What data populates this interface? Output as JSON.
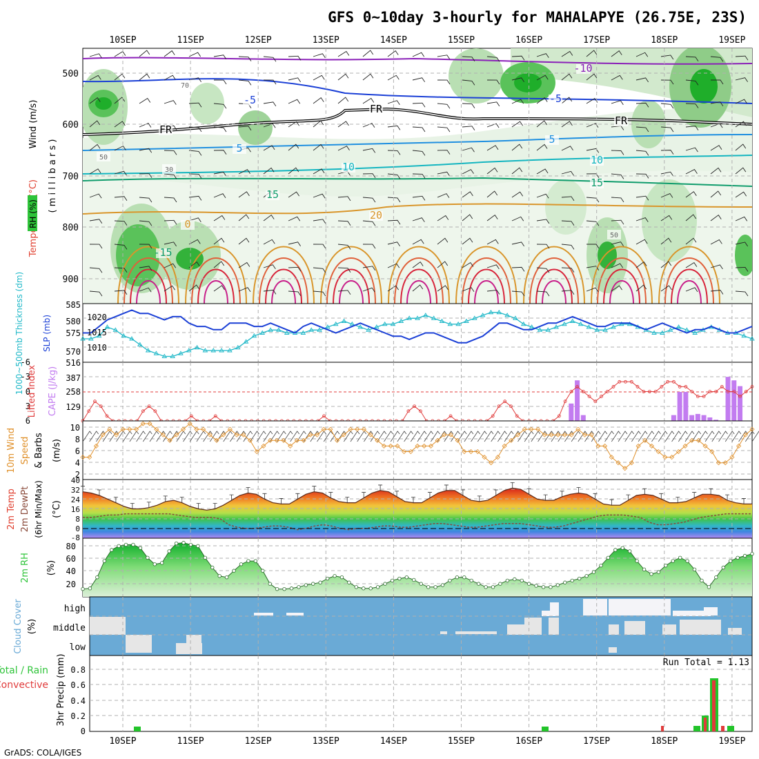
{
  "title": "GFS 0~10day 3-hourly for MAHALAPYE (26.75E, 23S)",
  "footer": "GrADS: COLA/IGES",
  "dates": [
    "10SEP",
    "11SEP",
    "12SEP",
    "13SEP",
    "14SEP",
    "15SEP",
    "16SEP",
    "17SEP",
    "18SEP",
    "19SEP"
  ],
  "panels": {
    "upper_air": {
      "label_wind": "Wind (m/s)",
      "label_temp": "Temperature (°C)",
      "label_rh": "RH (%)",
      "label_levels": "( m i l l i b a r s )",
      "y_ticks": [
        "500",
        "600",
        "700",
        "800",
        "900"
      ],
      "contour_labels": [
        {
          "text": "-10",
          "color": "#8a1fb8"
        },
        {
          "text": "-5",
          "color": "#1a3fd6"
        },
        {
          "text": "-5",
          "color": "#1a3fd6"
        },
        {
          "text": "5",
          "color": "#1f8fe0"
        },
        {
          "text": "5",
          "color": "#1f8fe0"
        },
        {
          "text": "10",
          "color": "#13b5c0"
        },
        {
          "text": "10",
          "color": "#13b5c0"
        },
        {
          "text": "15",
          "color": "#0f9c6c"
        },
        {
          "text": "15",
          "color": "#0f9c6c"
        },
        {
          "text": "20",
          "color": "#d9952a"
        },
        {
          "text": "FR",
          "color": "#000000"
        },
        {
          "text": "FR",
          "color": "#000000"
        },
        {
          "text": "FR",
          "color": "#000000"
        },
        {
          "text": "50",
          "color": "#666666"
        },
        {
          "text": "50",
          "color": "#666666"
        },
        {
          "text": "30",
          "color": "#666666"
        },
        {
          "text": "70",
          "color": "#666666"
        },
        {
          "text": "0",
          "color": "#d9952a"
        },
        {
          "text": "-15",
          "color": "#0f9c6c"
        }
      ]
    },
    "thickness": {
      "label_thick": "1000~500mb Thickness (dm)",
      "label_slp": "SLP (mb)",
      "left_ticks": [
        "585",
        "580",
        "575",
        "570",
        "516"
      ],
      "right_ticks": [
        "1020",
        "1015",
        "1010"
      ]
    },
    "cape": {
      "label_li": "Lifted Index",
      "label_cape": "CAPE (J/kg)",
      "li_ticks": [
        "-6",
        "-3",
        "0",
        "3",
        "6"
      ],
      "cape_ticks": [
        "387",
        "258",
        "129"
      ]
    },
    "wind10": {
      "label_a": "10m Wind",
      "label_b": "Speed",
      "label_c": "& Barbs",
      "unit": "(m/s)",
      "y_ticks": [
        "10",
        "8",
        "6",
        "4",
        "2"
      ]
    },
    "temp2m": {
      "label_a": "2m Temp",
      "label_b": "2m DewPt",
      "label_c": "(6hr Min/Max)",
      "unit": "(°C)",
      "y_ticks": [
        "40",
        "32",
        "24",
        "16",
        "8",
        "0",
        "-8"
      ]
    },
    "rh2m": {
      "label": "2m RH",
      "unit": "(%)",
      "y_ticks": [
        "80",
        "60",
        "40",
        "20"
      ]
    },
    "cloud": {
      "label": "Cloud Cover",
      "unit": "(%)",
      "rows": [
        "high",
        "middle",
        "low"
      ]
    },
    "precip": {
      "label_a": "Total / Rain",
      "label_b": "Convective",
      "label_unit": "3hr Precip (mm)",
      "run_total": "Run Total = 1.13",
      "y_ticks": [
        "0.8",
        "0.6",
        "0.4",
        "0.2",
        "0"
      ]
    }
  },
  "colors": {
    "grid": "#b0b0b0",
    "thickness": "#1fb8c8",
    "slp": "#1a3fd6",
    "lifted_index": "#e03b3b",
    "cape": "#c27cf0",
    "wind": "#e0902a",
    "dewpoint": "#8a4a3a",
    "rh": "#2fc43a",
    "cloud": "#6aaad6",
    "precip_total": "#22c42a",
    "precip_conv": "#e03b3b"
  },
  "chart_data": {
    "type": "line",
    "steps_per_day": 8,
    "start_offset_steps": -2,
    "thickness_dm": [
      573,
      573,
      574,
      577,
      576,
      574,
      573,
      571,
      569,
      568,
      567,
      567,
      568,
      569,
      570,
      569,
      569,
      569,
      569,
      570,
      572,
      574,
      575,
      576,
      576,
      575,
      575,
      575,
      576,
      576,
      577,
      578,
      579,
      578,
      577,
      576,
      577,
      578,
      578,
      579,
      580,
      580,
      581,
      580,
      579,
      578,
      578,
      579,
      580,
      581,
      582,
      582,
      581,
      580,
      578,
      577,
      576,
      576,
      577,
      578,
      579,
      578,
      577,
      576,
      576,
      577,
      578,
      578,
      577,
      576,
      575,
      575,
      576,
      577,
      576,
      575,
      576,
      577,
      576,
      575,
      575,
      574,
      573
    ],
    "slp_mb": [
      1014,
      1014,
      1016,
      1018,
      1019,
      1020,
      1021,
      1020,
      1020,
      1019,
      1018,
      1019,
      1019,
      1017,
      1016,
      1016,
      1015,
      1015,
      1017,
      1017,
      1017,
      1016,
      1016,
      1017,
      1016,
      1015,
      1014,
      1016,
      1017,
      1016,
      1015,
      1014,
      1015,
      1016,
      1017,
      1016,
      1015,
      1014,
      1013,
      1013,
      1012,
      1013,
      1014,
      1014,
      1013,
      1012,
      1011,
      1011,
      1012,
      1013,
      1015,
      1017,
      1017,
      1016,
      1015,
      1015,
      1016,
      1017,
      1017,
      1018,
      1019,
      1018,
      1017,
      1016,
      1016,
      1017,
      1017,
      1017,
      1016,
      1015,
      1016,
      1017,
      1016,
      1015,
      1014,
      1015,
      1015,
      1016,
      1015,
      1014,
      1014,
      1015,
      1016
    ],
    "lifted_index": [
      6,
      4,
      2,
      3,
      5,
      6,
      6,
      6,
      6,
      6,
      4,
      3,
      4,
      6,
      6,
      6,
      6,
      6,
      5,
      6,
      6,
      6,
      5,
      6,
      6,
      6,
      6,
      6,
      6,
      6,
      6,
      6,
      6,
      6,
      6,
      6,
      6,
      6,
      6,
      6,
      5,
      6,
      6,
      6,
      6,
      6,
      6,
      6,
      6,
      6,
      6,
      6,
      6,
      6,
      4,
      3,
      4,
      6,
      6,
      6,
      6,
      5,
      6,
      6,
      6,
      6,
      6,
      6,
      5,
      3,
      2,
      3,
      5,
      6,
      6,
      6,
      6,
      6,
      6,
      5,
      2,
      0,
      -1,
      0,
      1,
      2,
      1,
      0,
      -1,
      -2,
      -2,
      -2,
      -1,
      0,
      0,
      0,
      -1,
      -2,
      -2,
      -1,
      -1,
      0,
      1,
      1,
      0,
      0,
      -1,
      0,
      0,
      1,
      0,
      -1
    ],
    "cape_jkg": [
      0,
      0,
      0,
      0,
      0,
      0,
      0,
      0,
      0,
      0,
      0,
      0,
      0,
      0,
      0,
      0,
      0,
      0,
      0,
      0,
      0,
      0,
      0,
      0,
      0,
      0,
      0,
      0,
      0,
      0,
      0,
      0,
      0,
      0,
      0,
      0,
      0,
      0,
      0,
      0,
      0,
      0,
      0,
      0,
      0,
      0,
      0,
      0,
      0,
      0,
      0,
      0,
      0,
      0,
      0,
      0,
      0,
      0,
      0,
      0,
      0,
      0,
      0,
      0,
      0,
      0,
      0,
      0,
      0,
      0,
      0,
      0,
      0,
      0,
      0,
      0,
      0,
      0,
      0,
      0,
      0,
      150,
      350,
      50,
      0,
      0,
      0,
      0,
      0,
      0,
      0,
      0,
      0,
      0,
      0,
      0,
      0,
      0,
      50,
      250,
      250,
      50,
      60,
      50,
      30,
      10,
      0,
      380,
      350,
      300,
      0,
      0
    ],
    "wind10_ms": [
      4,
      4,
      6,
      8,
      9,
      8,
      9,
      9,
      9,
      10,
      10,
      9,
      8,
      7,
      8,
      9,
      10,
      9,
      9,
      8,
      7,
      8,
      9,
      8,
      8,
      7,
      5,
      6,
      7,
      7,
      7,
      6,
      7,
      7,
      8,
      8,
      9,
      9,
      7,
      8,
      9,
      9,
      9,
      8,
      7,
      6,
      6,
      6,
      5,
      5,
      6,
      6,
      6,
      7,
      8,
      8,
      7,
      5,
      5,
      5,
      4,
      3,
      4,
      6,
      7,
      8,
      9,
      9,
      9,
      8,
      8,
      8,
      8,
      8,
      9,
      8,
      8,
      6,
      6,
      4,
      3,
      2,
      3,
      6,
      7,
      6,
      5,
      4,
      4,
      5,
      6,
      7,
      7,
      6,
      5,
      3,
      3,
      4,
      6,
      8,
      9
    ],
    "temp2m_c": [
      30,
      29,
      27,
      24,
      21,
      18,
      16,
      16,
      17,
      19,
      22,
      23,
      21,
      18,
      16,
      15,
      16,
      19,
      23,
      27,
      29,
      28,
      24,
      21,
      20,
      20,
      24,
      28,
      30,
      29,
      25,
      22,
      21,
      21,
      25,
      29,
      31,
      30,
      26,
      22,
      21,
      21,
      25,
      29,
      31,
      31,
      27,
      23,
      22,
      23,
      27,
      31,
      33,
      32,
      28,
      24,
      23,
      23,
      26,
      28,
      29,
      28,
      24,
      20,
      19,
      19,
      23,
      27,
      28,
      27,
      24,
      21,
      21,
      22,
      25,
      28,
      28,
      27,
      23,
      21,
      20,
      20
    ],
    "dewpt2m_c": [
      9,
      9,
      10,
      11,
      11,
      12,
      12,
      12,
      12,
      12,
      12,
      11,
      10,
      9,
      9,
      9,
      8,
      3,
      1,
      0,
      0,
      1,
      2,
      2,
      1,
      -1,
      0,
      2,
      3,
      2,
      0,
      -1,
      0,
      0,
      1,
      2,
      2,
      1,
      1,
      2,
      3,
      4,
      4,
      3,
      2,
      1,
      1,
      2,
      3,
      4,
      4,
      4,
      3,
      2,
      1,
      1,
      2,
      4,
      6,
      8,
      10,
      11,
      11,
      11,
      10,
      9,
      5,
      3,
      3,
      4,
      5,
      7,
      9,
      10,
      11,
      12,
      12,
      12,
      12
    ],
    "rh2m_pct": [
      12,
      13,
      30,
      55,
      72,
      78,
      80,
      80,
      75,
      60,
      50,
      52,
      70,
      82,
      83,
      80,
      78,
      60,
      45,
      32,
      30,
      40,
      50,
      55,
      55,
      40,
      20,
      12,
      12,
      13,
      15,
      18,
      20,
      22,
      28,
      32,
      30,
      22,
      15,
      13,
      13,
      15,
      20,
      25,
      28,
      30,
      26,
      20,
      15,
      15,
      18,
      25,
      30,
      30,
      25,
      20,
      15,
      15,
      20,
      25,
      27,
      25,
      20,
      17,
      15,
      15,
      18,
      22,
      25,
      28,
      32,
      38,
      48,
      60,
      72,
      75,
      70,
      55,
      42,
      35,
      38,
      48,
      55,
      60,
      55,
      42,
      25,
      15,
      30,
      45,
      55,
      60,
      63,
      66
    ]
  }
}
